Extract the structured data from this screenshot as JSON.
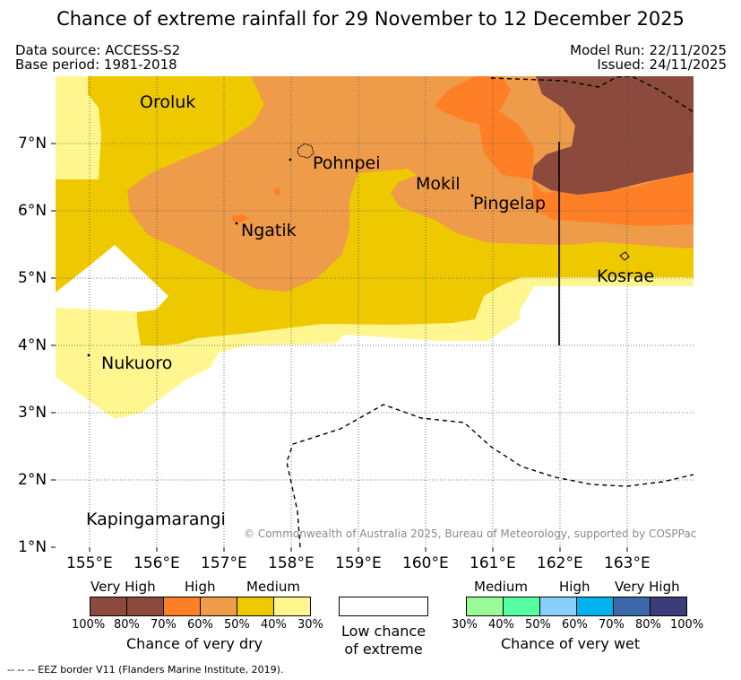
{
  "title": "Chance of extreme rainfall for 29 November to 12 December 2025",
  "meta": {
    "data_source": "Data source: ACCESS-S2",
    "base_period": "Base period: 1981-2018",
    "model_run": "Model Run: 22/11/2025",
    "issued": "Issued: 24/11/2025"
  },
  "map": {
    "lon_labels": [
      "155°E",
      "156°E",
      "157°E",
      "158°E",
      "159°E",
      "160°E",
      "161°E",
      "162°E",
      "163°E"
    ],
    "lat_labels": [
      "7°N",
      "6°N",
      "5°N",
      "4°N",
      "3°N",
      "2°N",
      "1°N"
    ],
    "places": [
      "Oroluk",
      "Pohnpei",
      "Mokil",
      "Pingelap",
      "Ngatik",
      "Kosrae",
      "Nukuoro",
      "Kapingamarangi"
    ],
    "copyright": "© Commonwealth of Australia 2025, Bureau of Meteorology, supported by COSPPac"
  },
  "legend": {
    "dry": {
      "levels": [
        "Very High",
        "High",
        "Medium"
      ],
      "ticks": [
        "100%",
        "80%",
        "70%",
        "60%",
        "50%",
        "40%",
        "30%"
      ],
      "colors": [
        "#8b4a3c",
        "#8b4a3c",
        "#ff7f27",
        "#ee9b4a",
        "#eec900",
        "#fff68f"
      ],
      "caption": "Chance of very dry"
    },
    "low": {
      "line1": "Low chance",
      "line2": "of extreme"
    },
    "wet": {
      "levels": [
        "Medium",
        "High",
        "Very High"
      ],
      "ticks": [
        "30%",
        "40%",
        "50%",
        "60%",
        "70%",
        "80%",
        "100%"
      ],
      "colors": [
        "#98fb98",
        "#55ffa0",
        "#87cefa",
        "#00b2ee",
        "#3a68a8",
        "#3c3c7a"
      ],
      "caption": "Chance of very wet"
    }
  },
  "footnote": "--  --  -- EEZ border V11 (Flanders Marine Institute, 2019)."
}
